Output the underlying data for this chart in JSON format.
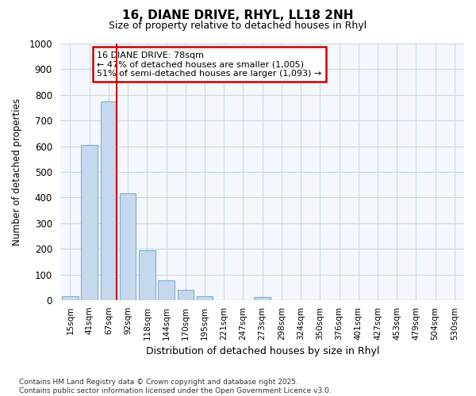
{
  "title_line1": "16, DIANE DRIVE, RHYL, LL18 2NH",
  "title_line2": "Size of property relative to detached houses in Rhyl",
  "xlabel": "Distribution of detached houses by size in Rhyl",
  "ylabel": "Number of detached properties",
  "categories": [
    "15sqm",
    "41sqm",
    "67sqm",
    "92sqm",
    "118sqm",
    "144sqm",
    "170sqm",
    "195sqm",
    "221sqm",
    "247sqm",
    "273sqm",
    "298sqm",
    "324sqm",
    "350sqm",
    "376sqm",
    "401sqm",
    "427sqm",
    "453sqm",
    "479sqm",
    "504sqm",
    "530sqm"
  ],
  "values": [
    15,
    605,
    775,
    415,
    195,
    78,
    40,
    15,
    0,
    0,
    13,
    0,
    0,
    0,
    0,
    0,
    0,
    0,
    0,
    0,
    0
  ],
  "bar_color": "#c5d8ed",
  "bar_edge_color": "#7aafd4",
  "vline_color": "#cc0000",
  "annotation_text": "16 DIANE DRIVE: 78sqm\n← 47% of detached houses are smaller (1,005)\n51% of semi-detached houses are larger (1,093) →",
  "annotation_box_edge_color": "#cc0000",
  "annotation_bg": "white",
  "ylim": [
    0,
    1000
  ],
  "yticks": [
    0,
    100,
    200,
    300,
    400,
    500,
    600,
    700,
    800,
    900,
    1000
  ],
  "grid_color": "#c8d8e8",
  "bg_color": "#f0f4f8",
  "plot_bg": "#f4f8fc",
  "footnote": "Contains HM Land Registry data © Crown copyright and database right 2025.\nContains public sector information licensed under the Open Government Licence v3.0.",
  "vline_bar_index": 2,
  "vline_side": "right"
}
